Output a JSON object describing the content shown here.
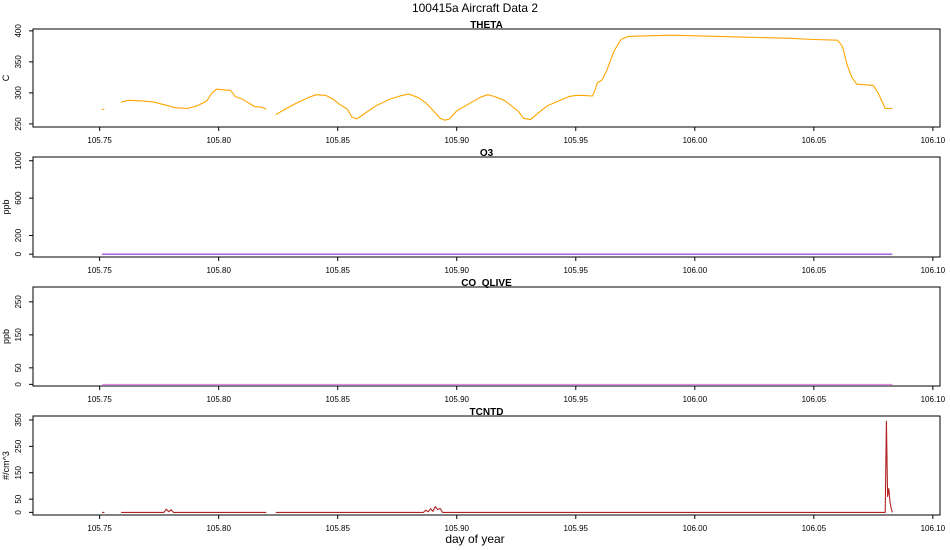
{
  "page_title": "100415a   Aircraft Data 2",
  "xlabel": "day of year",
  "x_ticks": [
    "105.75",
    "105.80",
    "105.85",
    "105.90",
    "105.95",
    "106.00",
    "106.05",
    "106.10"
  ],
  "colors": {
    "THETA": "#ffa500",
    "O3": "#8a2be2",
    "CO_QLIVE": "#ee82ee",
    "TCNTD": "#b22222"
  },
  "chart_data": [
    {
      "type": "line",
      "title": "THETA",
      "ylabel": "C",
      "xlim": [
        105.722,
        106.103
      ],
      "ylim": [
        245,
        403
      ],
      "y_ticks": [
        250,
        300,
        350,
        400
      ],
      "series": [
        {
          "color": "#ffa500",
          "segments": [
            [
              [
                105.751,
                273
              ],
              [
                105.752,
                274
              ]
            ],
            [
              [
                105.759,
                285
              ],
              [
                105.762,
                288
              ],
              [
                105.768,
                287
              ],
              [
                105.773,
                285
              ],
              [
                105.778,
                280
              ],
              [
                105.782,
                276
              ],
              [
                105.787,
                275
              ],
              [
                105.791,
                279
              ],
              [
                105.795,
                287
              ],
              [
                105.797,
                299
              ],
              [
                105.799,
                306
              ],
              [
                105.802,
                305
              ],
              [
                105.805,
                304
              ],
              [
                105.807,
                294
              ],
              [
                105.81,
                290
              ],
              [
                105.812,
                285
              ],
              [
                105.815,
                278
              ],
              [
                105.818,
                277
              ],
              [
                105.82,
                274
              ]
            ],
            [
              [
                105.824,
                265
              ],
              [
                105.828,
                274
              ],
              [
                105.833,
                284
              ],
              [
                105.838,
                293
              ],
              [
                105.841,
                297
              ],
              [
                105.845,
                296
              ],
              [
                105.848,
                290
              ],
              [
                105.851,
                281
              ],
              [
                105.854,
                274
              ],
              [
                105.856,
                261
              ],
              [
                105.858,
                258
              ],
              [
                105.861,
                266
              ],
              [
                105.866,
                279
              ],
              [
                105.872,
                290
              ],
              [
                105.877,
                296
              ],
              [
                105.88,
                298
              ],
              [
                105.884,
                292
              ],
              [
                105.887,
                284
              ],
              [
                105.89,
                272
              ],
              [
                105.893,
                259
              ],
              [
                105.895,
                256
              ],
              [
                105.897,
                258
              ],
              [
                105.9,
                271
              ],
              [
                105.904,
                280
              ],
              [
                105.91,
                293
              ],
              [
                105.913,
                297
              ],
              [
                105.916,
                294
              ],
              [
                105.92,
                288
              ],
              [
                105.923,
                279
              ],
              [
                105.926,
                270
              ],
              [
                105.928,
                259
              ],
              [
                105.931,
                257
              ],
              [
                105.934,
                267
              ],
              [
                105.938,
                279
              ],
              [
                105.944,
                289
              ],
              [
                105.947,
                294
              ],
              [
                105.95,
                296
              ],
              [
                105.953,
                296
              ],
              [
                105.957,
                295
              ],
              [
                105.958,
                303
              ],
              [
                105.959,
                316
              ],
              [
                105.961,
                321
              ],
              [
                105.963,
                336
              ],
              [
                105.966,
                367
              ],
              [
                105.969,
                386
              ],
              [
                105.972,
                391
              ],
              [
                105.98,
                392
              ],
              [
                105.99,
                393
              ],
              [
                106.0,
                392
              ],
              [
                106.01,
                391
              ],
              [
                106.02,
                390
              ],
              [
                106.03,
                389
              ],
              [
                106.04,
                388
              ],
              [
                106.05,
                386
              ],
              [
                106.06,
                385
              ],
              [
                106.062,
                375
              ],
              [
                106.064,
                345
              ],
              [
                106.066,
                325
              ],
              [
                106.068,
                314
              ],
              [
                106.072,
                313
              ],
              [
                106.075,
                312
              ],
              [
                106.077,
                300
              ],
              [
                106.08,
                275
              ],
              [
                106.083,
                275
              ]
            ]
          ]
        }
      ]
    },
    {
      "type": "line",
      "title": "O3",
      "ylabel": "ppb",
      "xlim": [
        105.722,
        106.103
      ],
      "ylim": [
        -30,
        1040
      ],
      "y_ticks": [
        0,
        200,
        600,
        1000
      ],
      "series": [
        {
          "color": "#8a2be2",
          "segments": [
            [
              [
                105.751,
                0
              ],
              [
                106.083,
                0
              ]
            ]
          ]
        }
      ]
    },
    {
      "type": "line",
      "title": "CO_QLIVE",
      "ylabel": "ppb",
      "xlim": [
        105.722,
        106.103
      ],
      "ylim": [
        -5,
        295
      ],
      "y_ticks": [
        0,
        50,
        150,
        250
      ],
      "series": [
        {
          "color": "#ee82ee",
          "segments": [
            [
              [
                105.751,
                0
              ],
              [
                106.083,
                0
              ]
            ]
          ]
        }
      ]
    },
    {
      "type": "line",
      "title": "TCNTD",
      "ylabel": "#/cm^3",
      "xlim": [
        105.722,
        106.103
      ],
      "ylim": [
        -10,
        365
      ],
      "y_ticks": [
        0,
        50,
        150,
        250,
        350
      ],
      "series": [
        {
          "color": "#b22222",
          "segments": [
            [
              [
                105.751,
                0
              ],
              [
                105.752,
                0
              ]
            ],
            [
              [
                105.759,
                0
              ],
              [
                105.777,
                0
              ],
              [
                105.778,
                12
              ],
              [
                105.779,
                2
              ],
              [
                105.78,
                10
              ],
              [
                105.781,
                0
              ],
              [
                105.82,
                0
              ]
            ],
            [
              [
                105.824,
                0
              ],
              [
                105.886,
                0
              ],
              [
                105.887,
                8
              ],
              [
                105.888,
                2
              ],
              [
                105.889,
                14
              ],
              [
                105.89,
                4
              ],
              [
                105.891,
                22
              ],
              [
                105.892,
                10
              ],
              [
                105.893,
                15
              ],
              [
                105.894,
                0
              ],
              [
                106.08,
                0
              ],
              [
                106.0805,
                345
              ],
              [
                106.081,
                60
              ],
              [
                106.0815,
                90
              ],
              [
                106.082,
                40
              ],
              [
                106.0825,
                15
              ],
              [
                106.083,
                0
              ]
            ]
          ]
        }
      ]
    }
  ]
}
